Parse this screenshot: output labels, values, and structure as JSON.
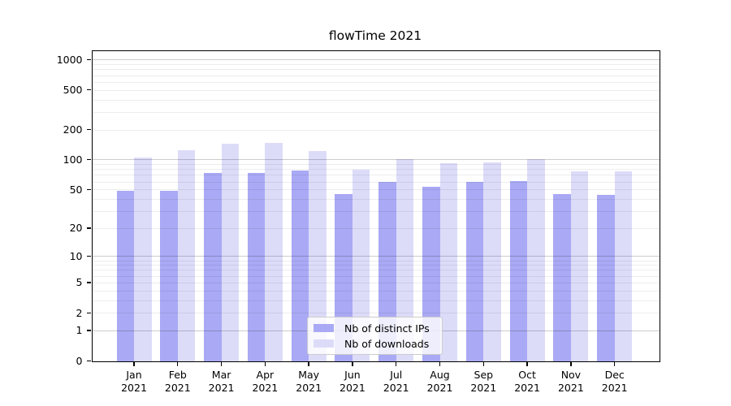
{
  "title": "flowTime 2021",
  "legend": {
    "items": [
      {
        "label": "Nb of distinct IPs"
      },
      {
        "label": "Nb of downloads"
      }
    ]
  },
  "chart_data": {
    "type": "bar",
    "title": "flowTime 2021",
    "xlabel": "",
    "ylabel": "",
    "categories": [
      "Jan 2021",
      "Feb 2021",
      "Mar 2021",
      "Apr 2021",
      "May 2021",
      "Jun 2021",
      "Jul 2021",
      "Aug 2021",
      "Sep 2021",
      "Oct 2021",
      "Nov 2021",
      "Dec 2021"
    ],
    "series": [
      {
        "name": "Nb of distinct IPs",
        "color": "#a9a9f5",
        "values": [
          48,
          48,
          73,
          73,
          77,
          45,
          59,
          53,
          60,
          61,
          45,
          44
        ]
      },
      {
        "name": "Nb of downloads",
        "color": "#dcdcf9",
        "values": [
          105,
          125,
          143,
          148,
          121,
          79,
          100,
          91,
          94,
          101,
          76,
          76
        ]
      }
    ],
    "yscale": "log1p",
    "y_ticks": [
      0,
      1,
      2,
      5,
      10,
      20,
      50,
      100,
      200,
      500,
      1000
    ],
    "ylim": [
      0,
      1230
    ],
    "grid": "horizontal, minor log gridlines on",
    "legend_position": "lower center inside plot"
  }
}
